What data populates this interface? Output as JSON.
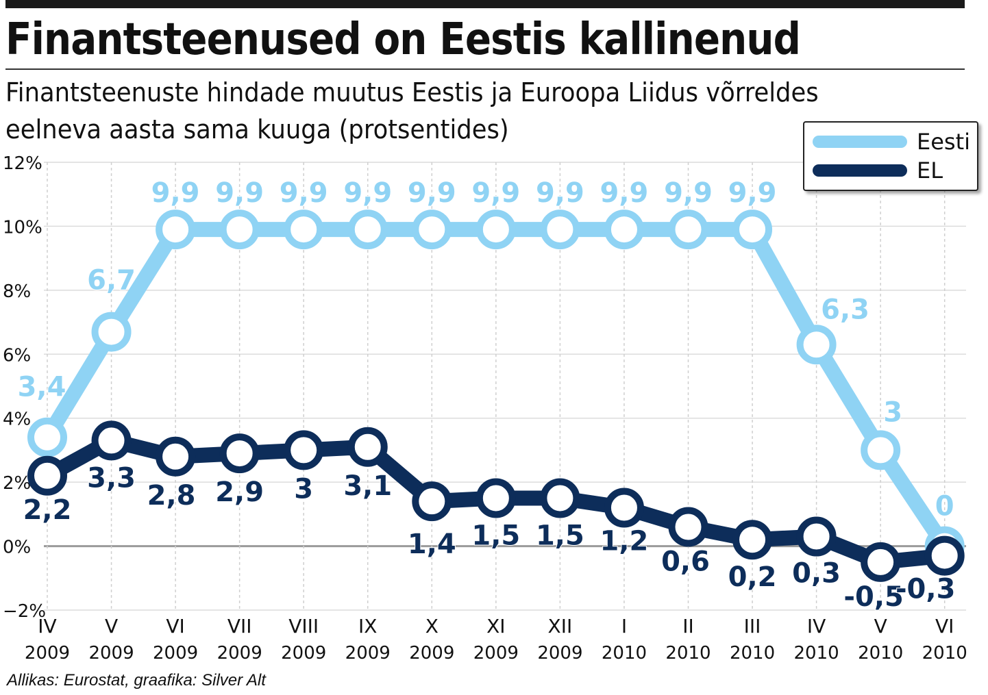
{
  "title": "Finantsteenused on Eestis kallinenud",
  "subtitle": "Finantsteenuste hindade muutus Eestis ja Euroopa Liidus võrreldes eelneva aasta sama kuuga (protsentides)",
  "footer": "Allikas: Eurostat, graafika: Silver Alt",
  "legend": [
    {
      "label": "Eesti",
      "color": "#8fd3f4"
    },
    {
      "label": "EL",
      "color": "#0d2d5a"
    }
  ],
  "chart_data": {
    "type": "line",
    "x_months": [
      "IV",
      "V",
      "VI",
      "VII",
      "VIII",
      "IX",
      "X",
      "XI",
      "XII",
      "I",
      "II",
      "III",
      "IV",
      "V",
      "VI"
    ],
    "x_years": [
      "2009",
      "2009",
      "2009",
      "2009",
      "2009",
      "2009",
      "2009",
      "2009",
      "2009",
      "2010",
      "2010",
      "2010",
      "2010",
      "2010",
      "2010"
    ],
    "y_ticks": [
      "12%",
      "10%",
      "8%",
      "6%",
      "4%",
      "2%",
      "0%",
      "−2%"
    ],
    "y_tick_values": [
      12,
      10,
      8,
      6,
      4,
      2,
      0,
      -2
    ],
    "ylim": [
      -2,
      12
    ],
    "grid": true,
    "legend_position": "top-right",
    "series": [
      {
        "name": "Eesti",
        "color": "#8fd3f4",
        "values": [
          3.4,
          6.7,
          9.9,
          9.9,
          9.9,
          9.9,
          9.9,
          9.9,
          9.9,
          9.9,
          9.9,
          9.9,
          6.3,
          3,
          0
        ],
        "labels": [
          "3,4",
          "6,7",
          "9,9",
          "9,9",
          "9,9",
          "9,9",
          "9,9",
          "9,9",
          "9,9",
          "9,9",
          "9,9",
          "9,9",
          "6,3",
          "3",
          "0"
        ]
      },
      {
        "name": "EL",
        "color": "#0d2d5a",
        "values": [
          2.2,
          3.3,
          2.8,
          2.9,
          3,
          3.1,
          1.4,
          1.5,
          1.5,
          1.2,
          0.6,
          0.2,
          0.3,
          -0.5,
          -0.3
        ],
        "labels": [
          "2,2",
          "3,3",
          "2,8",
          "2,9",
          "3",
          "3,1",
          "1,4",
          "1,5",
          "1,5",
          "1,2",
          "0,6",
          "0,2",
          "0,3",
          "-0,5",
          "-0,3"
        ]
      }
    ]
  }
}
